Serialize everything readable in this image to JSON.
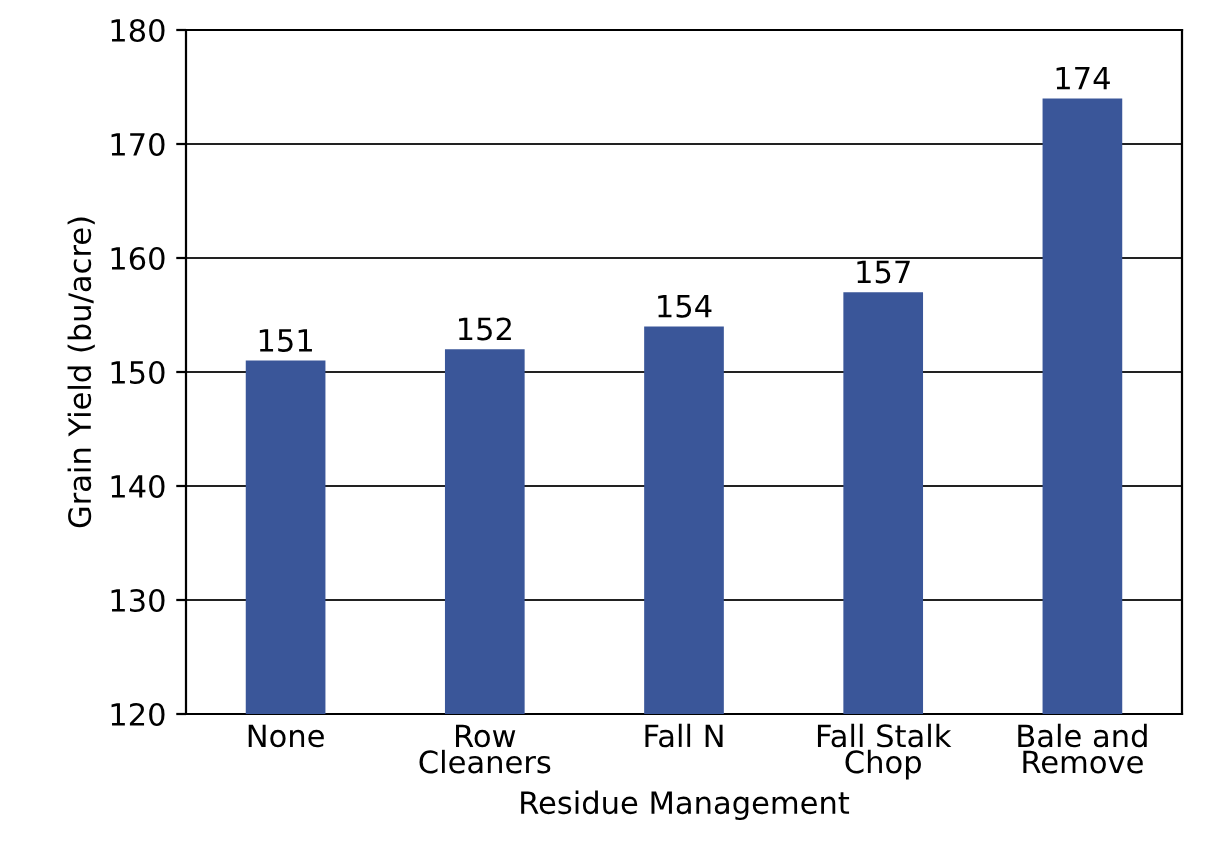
{
  "chart_data": {
    "type": "bar",
    "xlabel": "Residue Management",
    "ylabel": "Grain Yield (bu/acre)",
    "categories": [
      "None",
      "Row\nCleaners",
      "Fall N",
      "Fall Stalk\nChop",
      "Bale and\nRemove"
    ],
    "values": [
      151,
      152,
      154,
      157,
      174
    ],
    "color": "#3a5699",
    "ylim": [
      120,
      180
    ],
    "yticks": [
      120,
      130,
      140,
      150,
      160,
      170,
      180
    ],
    "grid": "y",
    "data_labels": true
  }
}
